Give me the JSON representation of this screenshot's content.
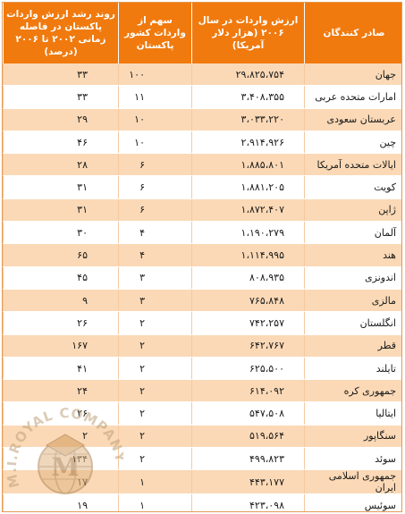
{
  "headers": {
    "exporters": "صادر کنندگان",
    "import_value": "ارزش واردات در سال ۲۰۰۶ (هزار دلار آمریکا)",
    "share": "سهم از واردات کشور پاکستان",
    "growth": "روند رشد ارزش واردات پاکستان در فاصله زمانی ۲۰۰۲ تا ۲۰۰۶ (درصد)"
  },
  "rows": [
    {
      "exporter": "جهان",
      "value": "۲۹،۸۲۵،۷۵۴",
      "share": "۱۰۰",
      "growth": "۳۳"
    },
    {
      "exporter": "امارات متحده عربی",
      "value": "۳،۴۰۸،۳۵۵",
      "share": "۱۱",
      "growth": "۳۳"
    },
    {
      "exporter": "عربستان سعودی",
      "value": "۳،۰۳۳،۲۲۰",
      "share": "۱۰",
      "growth": "۲۹"
    },
    {
      "exporter": "چین",
      "value": "۲،۹۱۴،۹۲۶",
      "share": "۱۰",
      "growth": "۴۶"
    },
    {
      "exporter": "ایالات متحده آمریکا",
      "value": "۱،۸۸۵،۸۰۱",
      "share": "۶",
      "growth": "۲۸"
    },
    {
      "exporter": "کویت",
      "value": "۱،۸۸۱،۲۰۵",
      "share": "۶",
      "growth": "۳۱"
    },
    {
      "exporter": "ژاپن",
      "value": "۱،۸۷۲،۴۰۷",
      "share": "۶",
      "growth": "۳۱"
    },
    {
      "exporter": "آلمان",
      "value": "۱،۱۹۰،۲۷۹",
      "share": "۴",
      "growth": "۳۰"
    },
    {
      "exporter": "هند",
      "value": "۱،۱۱۴،۹۹۵",
      "share": "۴",
      "growth": "۶۵"
    },
    {
      "exporter": "اندونزی",
      "value": "۸۰۸،۹۳۵",
      "share": "۳",
      "growth": "۴۵"
    },
    {
      "exporter": "مالزی",
      "value": "۷۶۵،۸۴۸",
      "share": "۳",
      "growth": "۹"
    },
    {
      "exporter": "انگلستان",
      "value": "۷۴۲،۲۵۷",
      "share": "۲",
      "growth": "۲۶"
    },
    {
      "exporter": "قطر",
      "value": "۶۴۲،۷۶۷",
      "share": "۲",
      "growth": "۱۶۷"
    },
    {
      "exporter": "تایلند",
      "value": "۶۲۵،۵۰۰",
      "share": "۲",
      "growth": "۴۱"
    },
    {
      "exporter": "جمهوری کره",
      "value": "۶۱۴،۰۹۲",
      "share": "۲",
      "growth": "۲۴"
    },
    {
      "exporter": "ایتالیا",
      "value": "۵۴۷،۵۰۸",
      "share": "۲",
      "growth": "۲۶"
    },
    {
      "exporter": "سنگاپور",
      "value": "۵۱۹،۵۶۴",
      "share": "۲",
      "growth": "۲"
    },
    {
      "exporter": "سوئد",
      "value": "۴۹۹،۸۲۳",
      "share": "۲",
      "growth": "۱۳۴"
    },
    {
      "exporter": "جمهوری اسلامی ایران",
      "value": "۴۴۳،۱۷۷",
      "share": "۱",
      "growth": "۱۷"
    },
    {
      "exporter": "سوئیس",
      "value": "۴۲۳،۰۹۸",
      "share": "۱",
      "growth": "۱۹"
    }
  ],
  "watermark": {
    "text": "M.I.ROYAL COMPANY"
  },
  "colors": {
    "header_bg": "#f07a0e",
    "stripe": "#fbd9b6"
  }
}
